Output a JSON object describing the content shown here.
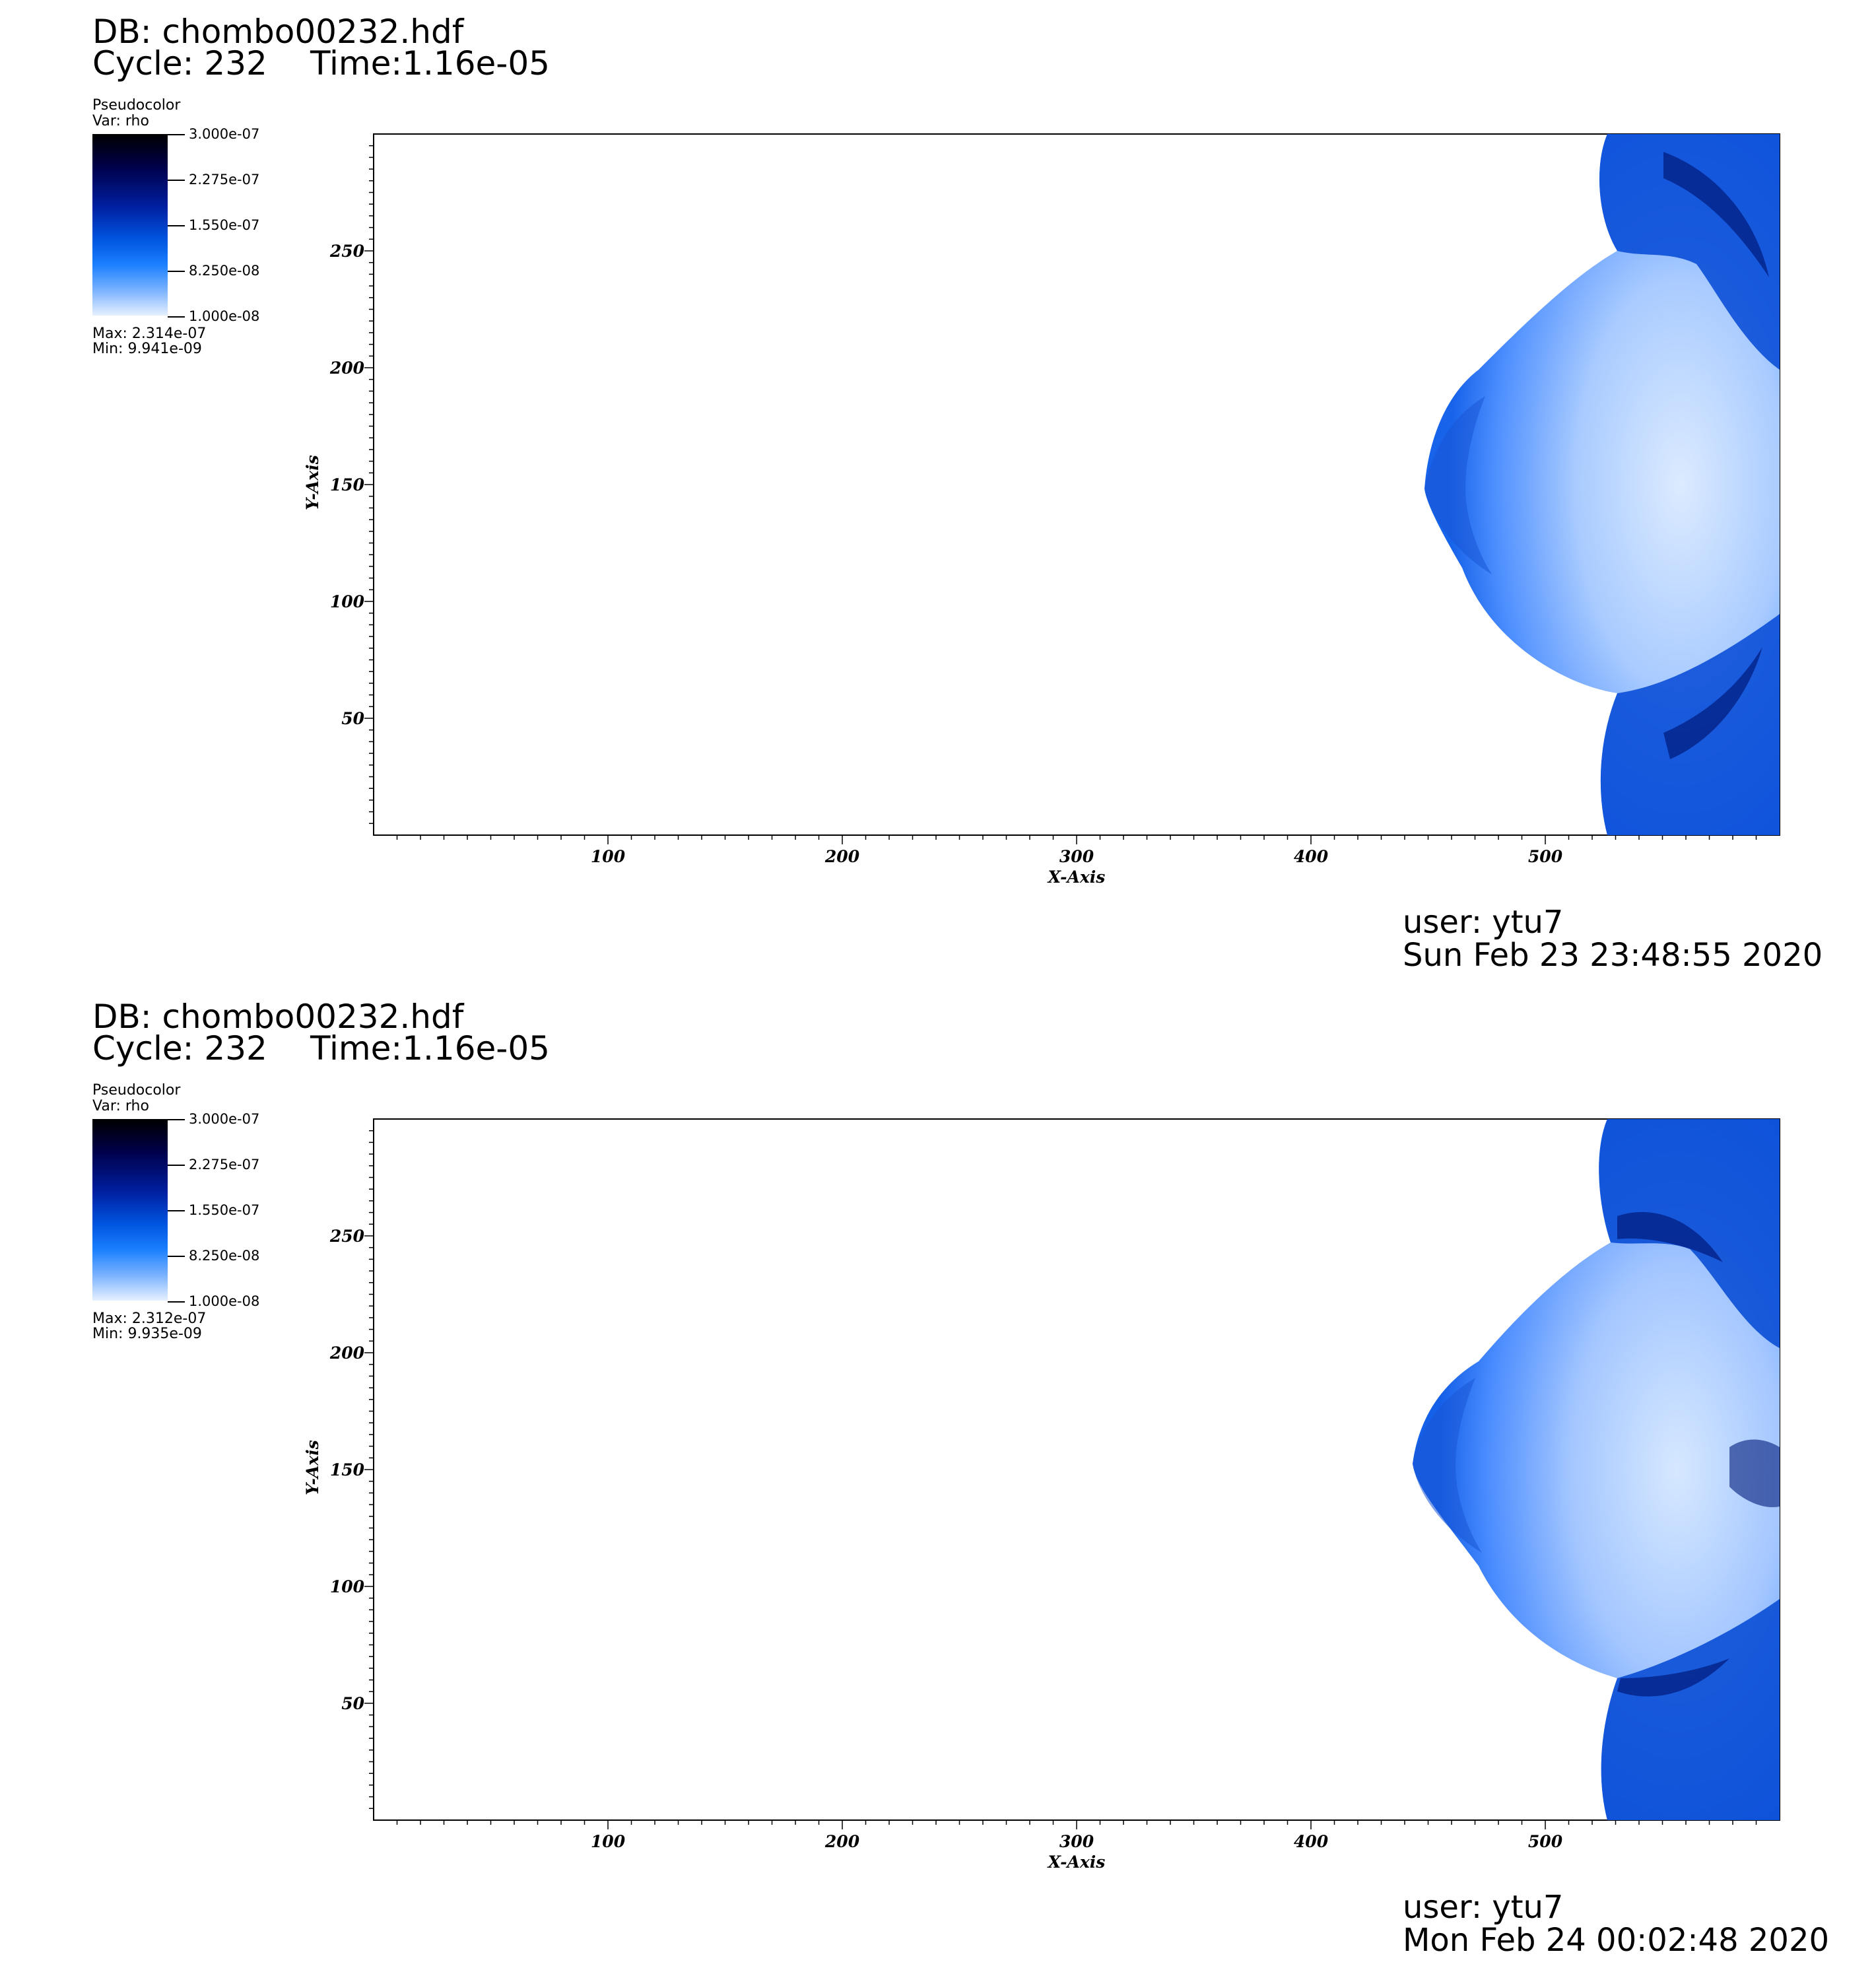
{
  "chart_data": [
    {
      "type": "heatmap",
      "header": {
        "db": "DB: chombo00232.hdf",
        "cycle": "Cycle: 232",
        "time": "Time:1.16e-05"
      },
      "legend": {
        "plot_type": "Pseudocolor",
        "var": "Var: rho",
        "ticks": [
          "3.000e-07",
          "2.275e-07",
          "1.550e-07",
          "8.250e-08",
          "1.000e-08"
        ],
        "max": "Max:  2.314e-07",
        "min": "Min:  9.941e-09"
      },
      "xlabel": "X-Axis",
      "ylabel": "Y-Axis",
      "xlim": [
        0,
        600
      ],
      "ylim": [
        0,
        300
      ],
      "x_ticks": [
        "100",
        "200",
        "300",
        "400",
        "500"
      ],
      "y_ticks": [
        "50",
        "100",
        "150",
        "200",
        "250"
      ],
      "user": "user: ytu7",
      "date": "Sun Feb 23 23:48:55 2020"
    },
    {
      "type": "heatmap",
      "header": {
        "db": "DB: chombo00232.hdf",
        "cycle": "Cycle: 232",
        "time": "Time:1.16e-05"
      },
      "legend": {
        "plot_type": "Pseudocolor",
        "var": "Var: rho",
        "ticks": [
          "3.000e-07",
          "2.275e-07",
          "1.550e-07",
          "8.250e-08",
          "1.000e-08"
        ],
        "max": "Max:  2.312e-07",
        "min": "Min:  9.935e-09"
      },
      "xlabel": "X-Axis",
      "ylabel": "Y-Axis",
      "xlim": [
        0,
        600
      ],
      "ylim": [
        0,
        300
      ],
      "x_ticks": [
        "100",
        "200",
        "300",
        "400",
        "500"
      ],
      "y_ticks": [
        "50",
        "100",
        "150",
        "200",
        "250"
      ],
      "user": "user: ytu7",
      "date": "Mon Feb 24 00:02:48 2020"
    }
  ]
}
